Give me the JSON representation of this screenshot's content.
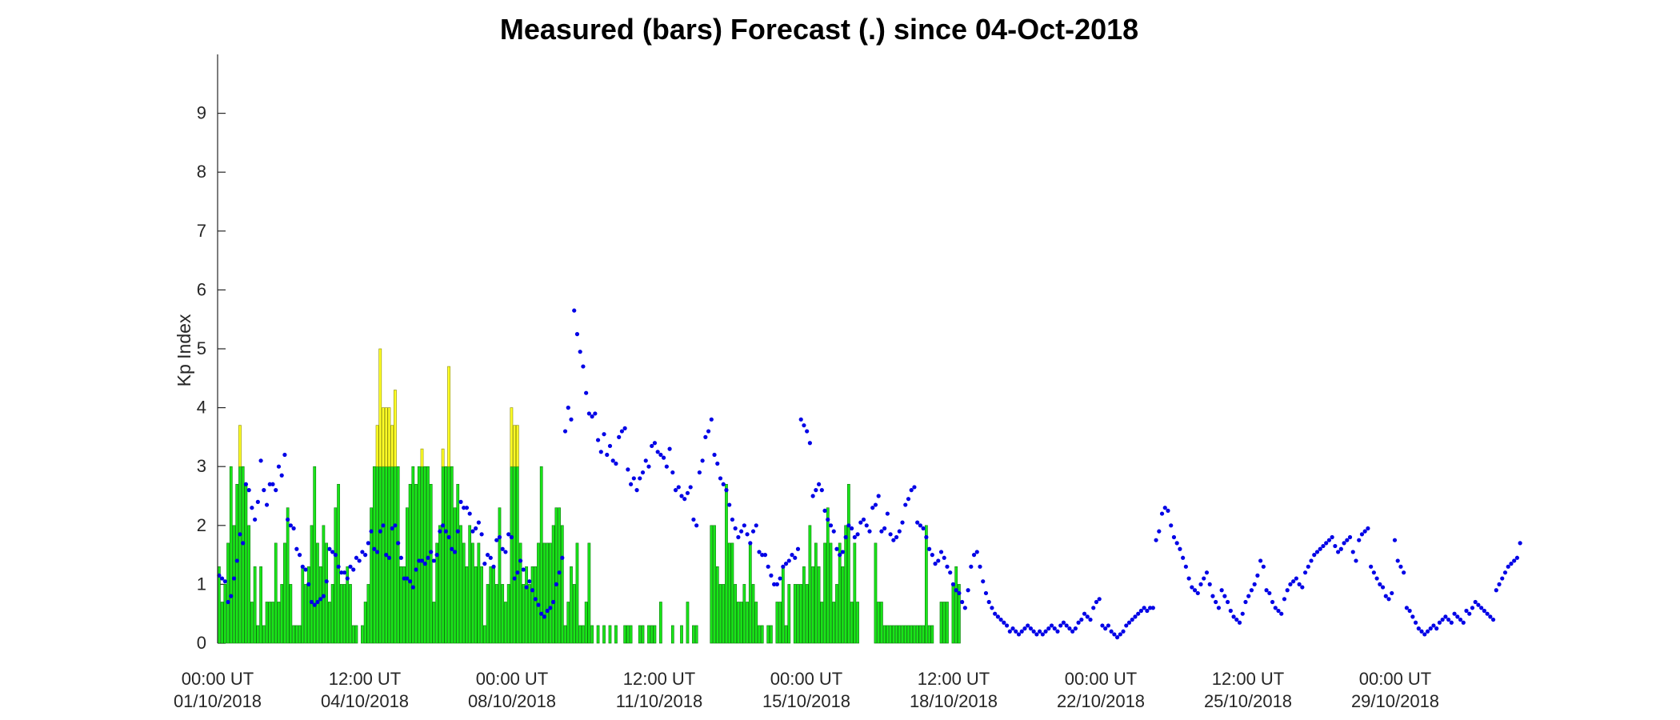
{
  "chart_data": {
    "type": "bar",
    "title": "Measured (bars) Forecast (.) since 04-Oct-2018",
    "xlabel": "",
    "ylabel": "Kp Index",
    "ylim": [
      0,
      10
    ],
    "yticks": [
      0,
      1,
      2,
      3,
      4,
      5,
      6,
      7,
      8,
      9
    ],
    "bar_interval_hours": 3,
    "threshold": 3,
    "colors": {
      "below_threshold": "#19e619",
      "above_threshold": "#ffff26",
      "forecast": "#0000e6",
      "axis": "#262626"
    },
    "x_ticks": [
      {
        "line1": "00:00 UT",
        "line2": "01/10/2018"
      },
      {
        "line1": "12:00 UT",
        "line2": "04/10/2018"
      },
      {
        "line1": "00:00 UT",
        "line2": "08/10/2018"
      },
      {
        "line1": "12:00 UT",
        "line2": "11/10/2018"
      },
      {
        "line1": "00:00 UT",
        "line2": "15/10/2018"
      },
      {
        "line1": "12:00 UT",
        "line2": "18/10/2018"
      },
      {
        "line1": "00:00 UT",
        "line2": "22/10/2018"
      },
      {
        "line1": "12:00 UT",
        "line2": "25/10/2018"
      },
      {
        "line1": "00:00 UT",
        "line2": "29/10/2018"
      }
    ],
    "series": [
      {
        "name": "Measured",
        "values": [
          1.3,
          0.7,
          1.0,
          1.7,
          3.0,
          2.0,
          2.7,
          3.7,
          3.0,
          2.7,
          2.0,
          0.7,
          1.3,
          0.3,
          1.3,
          0.3,
          0.7,
          0.7,
          0.7,
          1.7,
          0.7,
          1.0,
          1.7,
          2.3,
          1.0,
          0.3,
          0.3,
          0.3,
          1.3,
          1.0,
          1.3,
          2.0,
          3.0,
          1.7,
          1.3,
          2.0,
          1.7,
          0.7,
          1.0,
          2.3,
          2.7,
          1.0,
          1.0,
          1.3,
          1.0,
          0.3,
          0.3,
          0.0,
          0.3,
          0.7,
          1.0,
          2.3,
          3.0,
          3.7,
          5.0,
          4.0,
          4.0,
          4.0,
          3.7,
          4.3,
          3.0,
          1.3,
          1.3,
          2.3,
          2.7,
          3.0,
          2.7,
          3.0,
          3.3,
          3.0,
          3.0,
          2.7,
          0.7,
          1.7,
          2.0,
          3.3,
          3.0,
          4.7,
          3.0,
          2.3,
          2.7,
          2.0,
          1.7,
          1.3,
          2.0,
          1.7,
          1.3,
          1.7,
          1.3,
          0.3,
          1.0,
          1.3,
          1.3,
          1.0,
          2.3,
          1.0,
          0.7,
          1.0,
          4.0,
          3.7,
          3.7,
          1.7,
          1.0,
          1.3,
          1.0,
          1.3,
          1.3,
          1.7,
          3.0,
          1.7,
          1.7,
          1.7,
          2.0,
          2.3,
          2.3,
          2.0,
          0.3,
          0.7,
          1.3,
          1.0,
          1.7,
          0.3,
          0.3,
          0.7,
          1.7,
          0.3,
          0.0,
          0.3,
          0.0,
          0.3,
          0.0,
          0.3,
          0.0,
          0.3,
          0.0,
          0.0,
          0.3,
          0.3,
          0.3,
          0.0,
          0.0,
          0.3,
          0.3,
          0.0,
          0.3,
          0.3,
          0.3,
          0.0,
          0.7,
          0.0,
          0.0,
          0.0,
          0.3,
          0.0,
          0.0,
          0.3,
          0.0,
          0.7,
          0.0,
          0.3,
          0.3,
          0.0,
          0.0,
          0.0,
          0.0,
          2.0,
          2.0,
          1.3,
          1.0,
          1.0,
          2.7,
          1.7,
          1.7,
          1.0,
          0.7,
          0.7,
          1.0,
          0.7,
          1.7,
          1.0,
          0.7,
          0.3,
          0.3,
          0.0,
          0.3,
          0.3,
          0.0,
          0.7,
          0.7,
          1.3,
          0.3,
          1.0,
          0.0,
          1.0,
          1.0,
          1.0,
          1.3,
          1.0,
          2.0,
          1.3,
          1.7,
          1.3,
          0.7,
          1.7,
          2.3,
          1.7,
          0.7,
          1.0,
          1.7,
          1.3,
          2.0,
          2.7,
          0.7,
          1.7,
          0.7,
          0.0,
          0.0,
          0.0,
          0.0,
          0.0,
          1.7,
          0.7,
          0.7,
          0.3,
          0.3,
          0.3,
          0.3,
          0.3,
          0.3,
          0.3,
          0.3,
          0.3,
          0.3,
          0.3,
          0.3,
          0.3,
          0.3,
          2.0,
          0.3,
          0.3,
          0.0,
          0.0,
          0.7,
          0.7,
          0.7,
          0.0,
          1.0,
          1.3,
          1.0
        ]
      },
      {
        "name": "Forecast",
        "values": [
          1.15,
          1.1,
          1.05,
          0.7,
          0.8,
          1.1,
          1.4,
          1.85,
          1.7,
          2.7,
          2.6,
          2.3,
          2.1,
          2.4,
          3.1,
          2.6,
          2.35,
          2.7,
          2.7,
          2.6,
          3.0,
          2.85,
          3.2,
          2.1,
          2.0,
          1.95,
          1.6,
          1.5,
          1.3,
          1.25,
          1.0,
          0.7,
          0.65,
          0.7,
          0.75,
          0.8,
          1.05,
          1.6,
          1.55,
          1.5,
          1.3,
          1.2,
          1.2,
          1.1,
          1.3,
          1.25,
          1.45,
          1.4,
          1.55,
          1.5,
          1.7,
          1.9,
          1.6,
          1.55,
          1.9,
          2.0,
          1.5,
          1.45,
          1.95,
          2.0,
          1.7,
          1.45,
          1.1,
          1.1,
          1.05,
          0.95,
          1.25,
          1.4,
          1.4,
          1.35,
          1.45,
          1.55,
          1.4,
          1.5,
          1.9,
          2.0,
          1.9,
          1.8,
          1.6,
          1.55,
          1.9,
          2.4,
          2.3,
          2.3,
          2.2,
          1.9,
          1.95,
          2.05,
          1.85,
          1.35,
          1.5,
          1.45,
          1.3,
          1.75,
          1.8,
          1.6,
          1.55,
          1.85,
          1.8,
          1.1,
          1.2,
          1.4,
          1.25,
          0.95,
          1.05,
          0.9,
          0.75,
          0.65,
          0.5,
          0.45,
          0.55,
          0.6,
          0.7,
          1.0,
          1.2,
          1.45,
          3.6,
          4.0,
          3.8,
          5.65,
          5.25,
          4.95,
          4.7,
          4.25,
          3.9,
          3.85,
          3.9,
          3.45,
          3.25,
          3.55,
          3.2,
          3.35,
          3.1,
          3.05,
          3.5,
          3.6,
          3.65,
          2.95,
          2.7,
          2.8,
          2.6,
          2.8,
          2.9,
          3.1,
          3.0,
          3.35,
          3.4,
          3.25,
          3.2,
          3.15,
          3.0,
          3.3,
          2.9,
          2.6,
          2.65,
          2.5,
          2.45,
          2.55,
          2.65,
          2.1,
          2.0,
          2.9,
          3.1,
          3.5,
          3.6,
          3.8,
          3.2,
          3.05,
          2.8,
          2.7,
          2.6,
          2.35,
          2.1,
          1.95,
          1.8,
          1.9,
          2.0,
          1.85,
          1.7,
          1.9,
          2.0,
          1.55,
          1.5,
          1.5,
          1.3,
          1.15,
          1.0,
          1.0,
          1.1,
          1.3,
          1.35,
          1.4,
          1.5,
          1.45,
          1.6,
          3.8,
          3.7,
          3.6,
          3.4,
          2.5,
          2.6,
          2.7,
          2.6,
          2.25,
          2.1,
          2.0,
          1.9,
          1.6,
          1.5,
          1.55,
          1.8,
          2.0,
          1.95,
          1.8,
          1.85,
          2.05,
          2.1,
          2.0,
          1.9,
          2.3,
          2.35,
          2.5,
          1.9,
          1.95,
          2.2,
          1.85,
          1.75,
          1.8,
          1.9,
          2.05,
          2.35,
          2.45,
          2.6,
          2.65,
          2.05,
          2.0,
          1.95,
          1.8,
          1.6,
          1.5,
          1.35,
          1.4,
          1.55,
          1.45,
          1.3,
          1.2,
          1.0,
          0.9,
          0.85,
          0.7,
          0.6,
          0.9,
          1.3,
          1.5,
          1.55,
          1.3,
          1.05,
          0.85,
          0.7,
          0.6,
          0.5,
          0.45,
          0.4,
          0.35,
          0.3,
          0.2,
          0.25,
          0.2,
          0.15,
          0.2,
          0.25,
          0.3,
          0.25,
          0.2,
          0.15,
          0.2,
          0.15,
          0.2,
          0.25,
          0.3,
          0.25,
          0.2,
          0.3,
          0.35,
          0.3,
          0.25,
          0.2,
          0.25,
          0.35,
          0.4,
          0.5,
          0.45,
          0.4,
          0.6,
          0.7,
          0.75,
          0.3,
          0.25,
          0.3,
          0.2,
          0.15,
          0.1,
          0.15,
          0.2,
          0.3,
          0.35,
          0.4,
          0.45,
          0.5,
          0.55,
          0.6,
          0.55,
          0.6,
          0.6,
          1.75,
          1.9,
          2.2,
          2.3,
          2.25,
          2.0,
          1.8,
          1.7,
          1.6,
          1.45,
          1.3,
          1.1,
          0.95,
          0.9,
          0.85,
          1.0,
          1.1,
          1.2,
          1.0,
          0.8,
          0.7,
          0.6,
          0.9,
          0.8,
          0.7,
          0.55,
          0.45,
          0.4,
          0.35,
          0.5,
          0.7,
          0.8,
          0.9,
          1.0,
          1.15,
          1.4,
          1.3,
          0.9,
          0.85,
          0.7,
          0.6,
          0.55,
          0.5,
          0.75,
          0.9,
          1.0,
          1.05,
          1.1,
          1.0,
          0.95,
          1.2,
          1.3,
          1.4,
          1.5,
          1.55,
          1.6,
          1.65,
          1.7,
          1.75,
          1.8,
          1.65,
          1.55,
          1.6,
          1.7,
          1.75,
          1.8,
          1.55,
          1.4,
          1.75,
          1.85,
          1.9,
          1.95,
          1.3,
          1.2,
          1.1,
          1.0,
          0.95,
          0.8,
          0.75,
          0.85,
          1.75,
          1.4,
          1.3,
          1.2,
          0.6,
          0.55,
          0.45,
          0.35,
          0.25,
          0.2,
          0.15,
          0.2,
          0.25,
          0.3,
          0.25,
          0.35,
          0.4,
          0.45,
          0.4,
          0.35,
          0.5,
          0.45,
          0.4,
          0.35,
          0.55,
          0.5,
          0.6,
          0.7,
          0.65,
          0.6,
          0.55,
          0.5,
          0.45,
          0.4,
          0.9,
          1.0,
          1.1,
          1.2,
          1.3,
          1.35,
          1.4,
          1.45,
          1.7
        ]
      }
    ]
  }
}
